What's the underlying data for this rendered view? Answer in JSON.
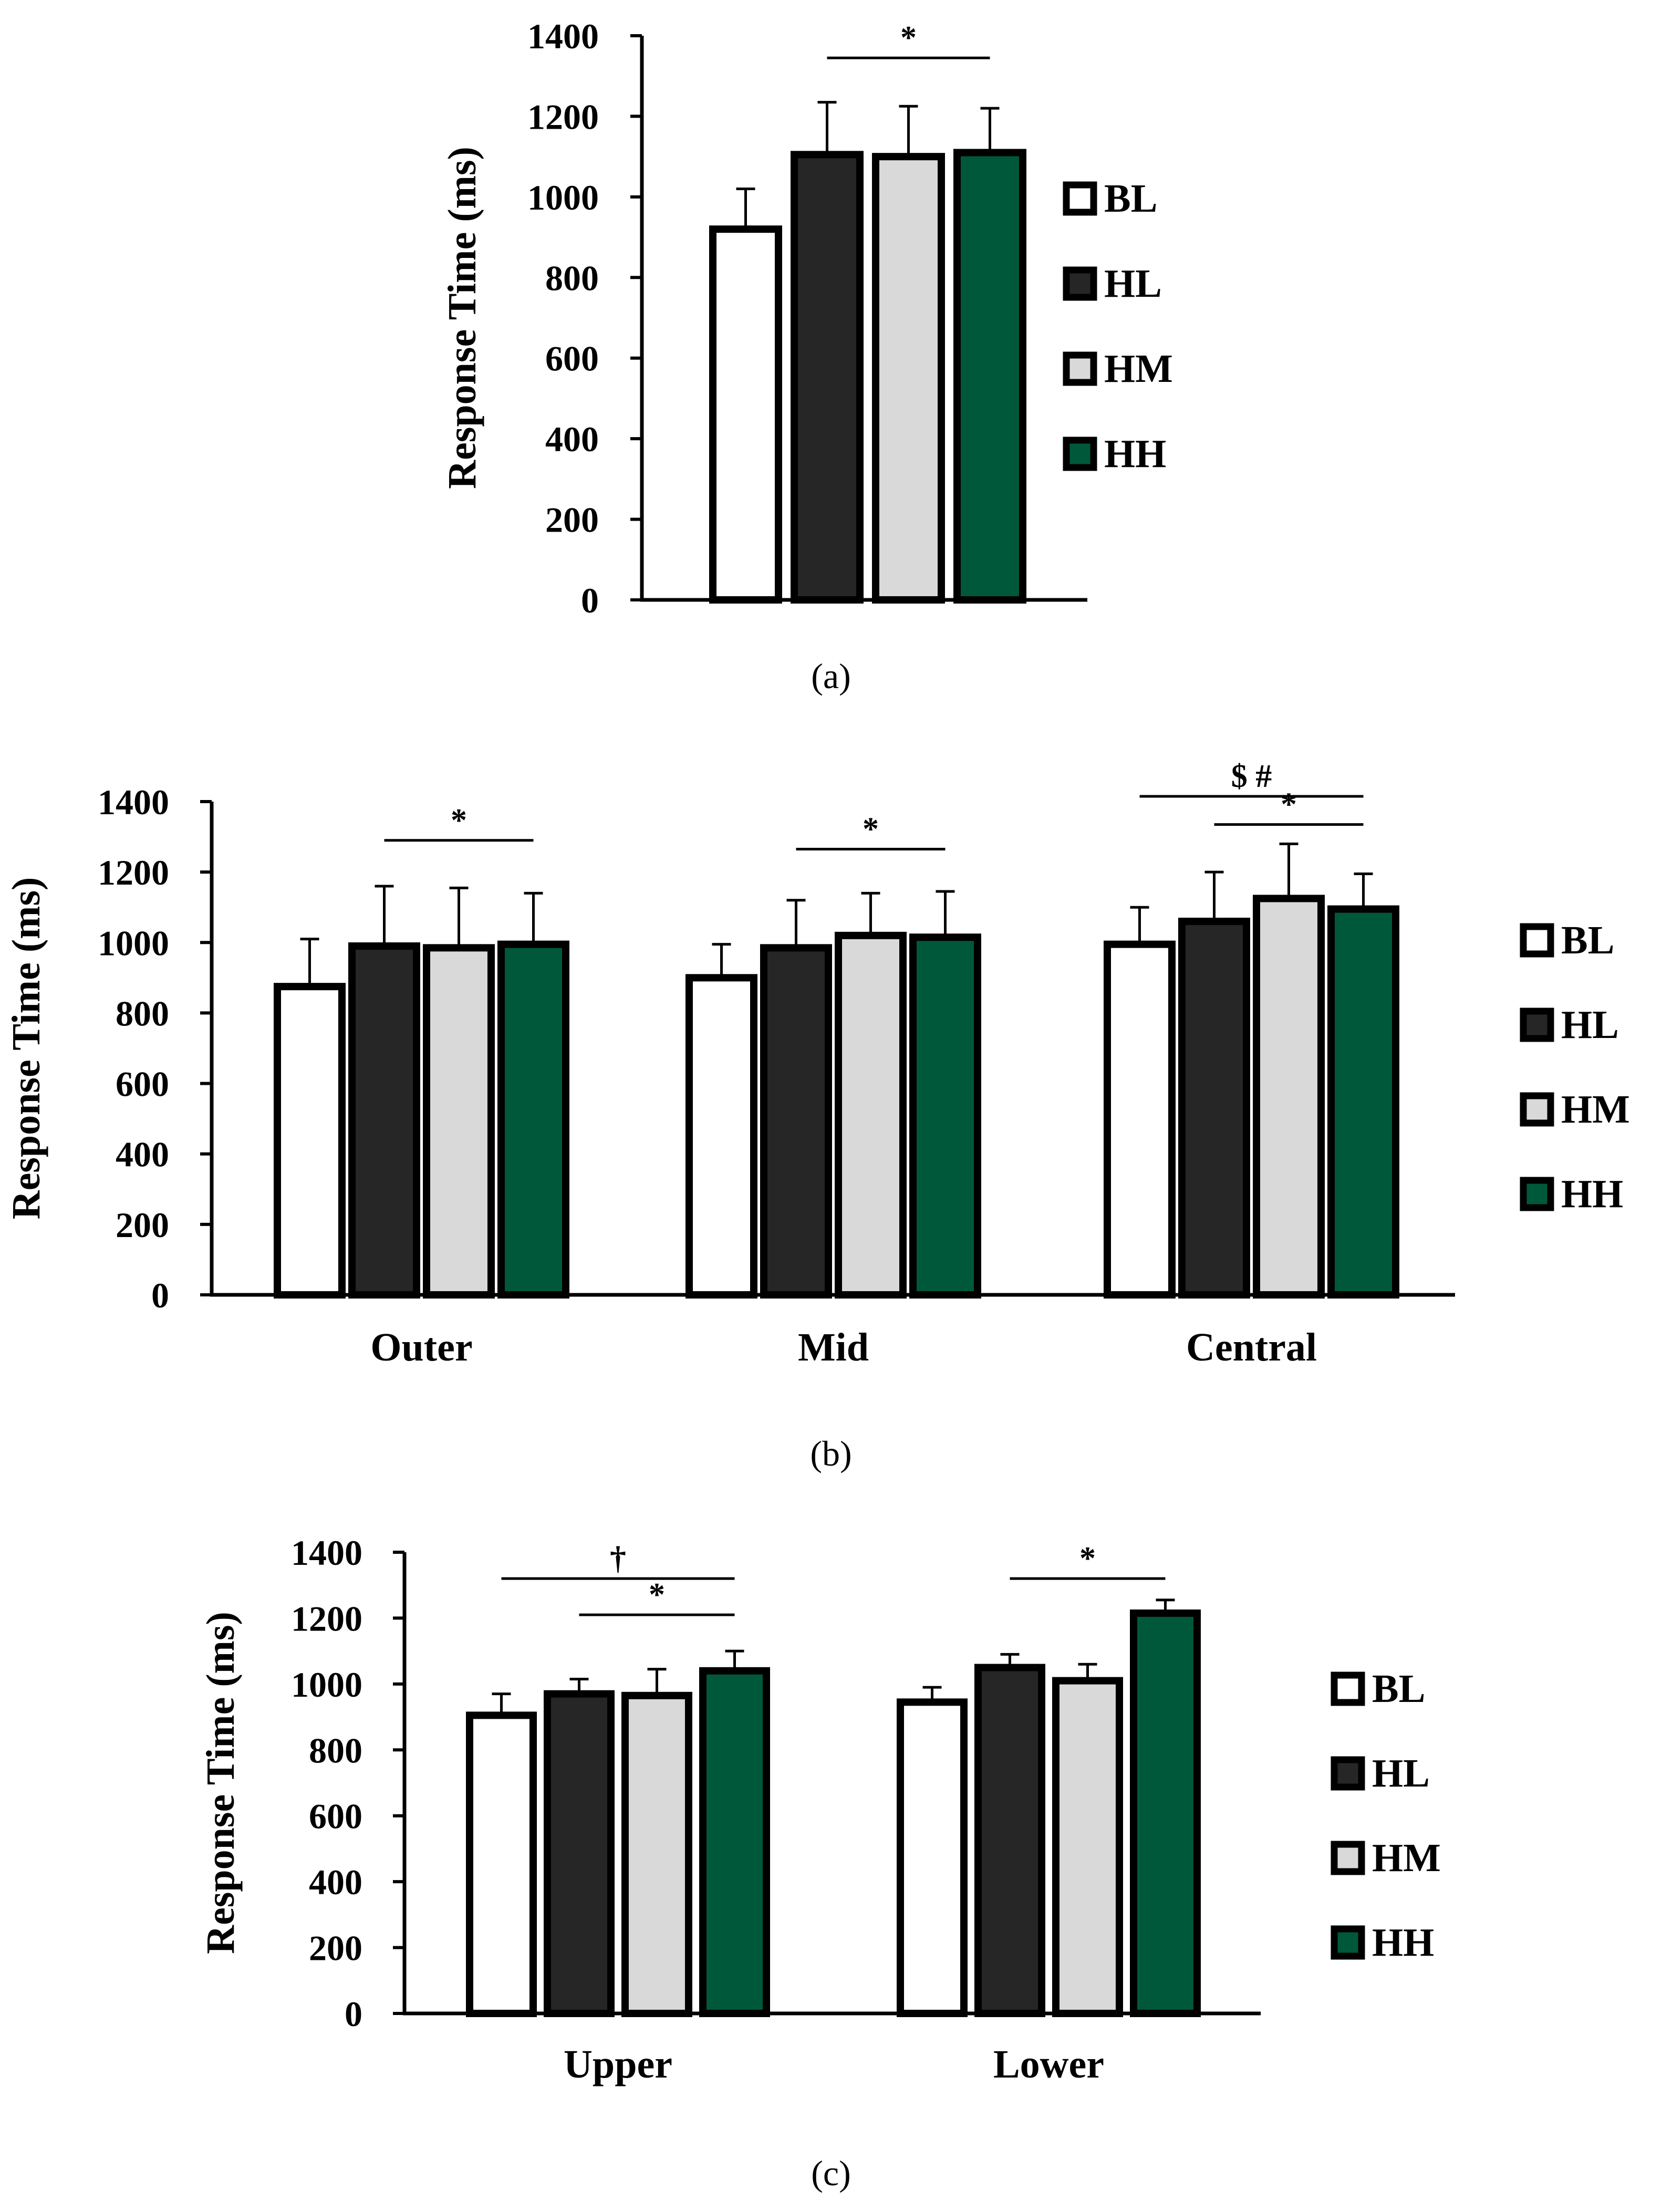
{
  "colors": {
    "BL": "#ffffff",
    "HL": "#262626",
    "HM": "#d9d9d9",
    "HH": "#00583a",
    "stroke": "#000000"
  },
  "chart_data": [
    {
      "type": "bar",
      "panel_label": "(a)",
      "ylabel": "Response Time (ms)",
      "xlabel": "",
      "ylim": [
        0,
        1400
      ],
      "yticks": [
        0,
        200,
        400,
        600,
        800,
        1000,
        1200,
        1400
      ],
      "ytick_labels": [
        "0",
        "200",
        "400",
        "600",
        "800",
        "1000",
        "1200",
        "1400"
      ],
      "categories": [
        ""
      ],
      "series": [
        {
          "name": "BL",
          "values": [
            920
          ],
          "errors": [
            100
          ]
        },
        {
          "name": "HL",
          "values": [
            1105
          ],
          "errors": [
            130
          ]
        },
        {
          "name": "HM",
          "values": [
            1100
          ],
          "errors": [
            125
          ]
        },
        {
          "name": "HH",
          "values": [
            1110
          ],
          "errors": [
            110
          ]
        }
      ],
      "legend": [
        "BL",
        "HL",
        "HM",
        "HH"
      ],
      "annotations": [
        {
          "text": "*",
          "group": 0,
          "from_series": 1,
          "to_series": 3,
          "y": 1345
        }
      ]
    },
    {
      "type": "bar",
      "panel_label": "(b)",
      "ylabel": "Response Time (ms)",
      "xlabel": "",
      "ylim": [
        0,
        1400
      ],
      "yticks": [
        0,
        200,
        400,
        600,
        800,
        1000,
        1200,
        1400
      ],
      "ytick_labels": [
        "0",
        "200",
        "400",
        "600",
        "800",
        "1000",
        "1200",
        "1400"
      ],
      "categories": [
        "Outer",
        "Mid",
        "Central"
      ],
      "series": [
        {
          "name": "BL",
          "values": [
            875,
            900,
            995
          ],
          "errors": [
            135,
            95,
            105
          ]
        },
        {
          "name": "HL",
          "values": [
            990,
            985,
            1060
          ],
          "errors": [
            170,
            135,
            140
          ]
        },
        {
          "name": "HM",
          "values": [
            985,
            1020,
            1125
          ],
          "errors": [
            170,
            120,
            155
          ]
        },
        {
          "name": "HH",
          "values": [
            995,
            1015,
            1095
          ],
          "errors": [
            145,
            130,
            100
          ]
        }
      ],
      "legend": [
        "BL",
        "HL",
        "HM",
        "HH"
      ],
      "annotations": [
        {
          "text": "*",
          "group": 0,
          "from_series": 1,
          "to_series": 3,
          "y": 1290
        },
        {
          "text": "*",
          "group": 1,
          "from_series": 1,
          "to_series": 3,
          "y": 1265
        },
        {
          "text": "$ #",
          "group": 2,
          "from_series": 0,
          "to_series": 3,
          "y": 1415
        },
        {
          "text": "*",
          "group": 2,
          "from_series": 1,
          "to_series": 3,
          "y": 1335
        }
      ]
    },
    {
      "type": "bar",
      "panel_label": "(c)",
      "ylabel": "Response Time (ms)",
      "xlabel": "",
      "ylim": [
        0,
        1400
      ],
      "yticks": [
        0,
        200,
        400,
        600,
        800,
        1000,
        1200,
        1400
      ],
      "ytick_labels": [
        "0",
        "200",
        "400",
        "600",
        "800",
        "1000",
        "1200",
        "1400"
      ],
      "categories": [
        "Upper",
        "Lower"
      ],
      "series": [
        {
          "name": "BL",
          "values": [
            905,
            945
          ],
          "errors": [
            65,
            45
          ]
        },
        {
          "name": "HL",
          "values": [
            970,
            1050
          ],
          "errors": [
            45,
            40
          ]
        },
        {
          "name": "HM",
          "values": [
            965,
            1010
          ],
          "errors": [
            80,
            50
          ]
        },
        {
          "name": "HH",
          "values": [
            1040,
            1215
          ],
          "errors": [
            60,
            40
          ]
        }
      ],
      "legend": [
        "BL",
        "HL",
        "HM",
        "HH"
      ],
      "annotations": [
        {
          "text": "†",
          "group": 0,
          "from_series": 0,
          "to_series": 3,
          "y": 1320
        },
        {
          "text": "*",
          "group": 0,
          "from_series": 1,
          "to_series": 3,
          "y": 1210
        },
        {
          "text": "*",
          "group": 1,
          "from_series": 1,
          "to_series": 3,
          "y": 1320
        }
      ]
    }
  ]
}
